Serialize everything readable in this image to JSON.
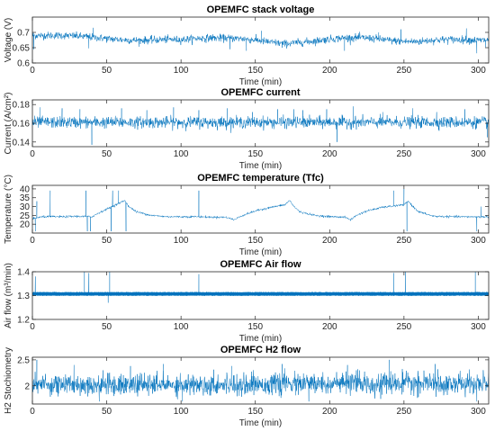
{
  "chart_data": [
    {
      "type": "line",
      "title": "OPEMFC stack voltage",
      "xlabel": "Time (min)",
      "ylabel": "Voltage (V)",
      "xlim": [
        0,
        307
      ],
      "ylim": [
        0.6,
        0.75
      ],
      "xticks": [
        0,
        50,
        100,
        150,
        200,
        250,
        300
      ],
      "yticks": [
        0.6,
        0.65,
        0.7
      ],
      "ytick_labels": [
        "0.6",
        "0.65",
        "0.7"
      ],
      "grid": false,
      "series": [
        {
          "color": "#0072BD",
          "noise": 0.012,
          "x": [
            0,
            10,
            20,
            30,
            38,
            40,
            50,
            60,
            70,
            80,
            90,
            100,
            110,
            120,
            130,
            140,
            150,
            160,
            170,
            180,
            190,
            200,
            210,
            220,
            230,
            240,
            250,
            260,
            270,
            280,
            290,
            300,
            307
          ],
          "y": [
            0.69,
            0.69,
            0.69,
            0.688,
            0.685,
            0.684,
            0.68,
            0.676,
            0.674,
            0.675,
            0.677,
            0.676,
            0.68,
            0.682,
            0.681,
            0.68,
            0.675,
            0.668,
            0.663,
            0.667,
            0.672,
            0.678,
            0.682,
            0.683,
            0.68,
            0.674,
            0.67,
            0.67,
            0.675,
            0.677,
            0.676,
            0.674,
            0.675
          ],
          "spikes": [
            [
              1,
              0.645
            ],
            [
              38,
              0.648
            ],
            [
              41,
              0.715
            ],
            [
              133,
              0.645
            ],
            [
              144,
              0.64
            ],
            [
              154,
              0.705
            ],
            [
              168,
              0.65
            ],
            [
              210,
              0.64
            ],
            [
              233,
              0.7
            ],
            [
              248,
              0.71
            ],
            [
              292,
              0.713
            ],
            [
              299,
              0.632
            ],
            [
              305,
              0.652
            ]
          ]
        }
      ]
    },
    {
      "type": "line",
      "title": "OPEMFC current",
      "xlabel": "Time (min)",
      "ylabel": "Current (A/cm²)",
      "xlim": [
        0,
        307
      ],
      "ylim": [
        0.135,
        0.185
      ],
      "xticks": [
        0,
        50,
        100,
        150,
        200,
        250,
        300
      ],
      "yticks": [
        0.14,
        0.16,
        0.18
      ],
      "ytick_labels": [
        "0.14",
        "0.16",
        "0.18"
      ],
      "grid": false,
      "series": [
        {
          "color": "#0072BD",
          "noise": 0.006,
          "x": [
            0,
            50,
            100,
            150,
            200,
            250,
            307
          ],
          "y": [
            0.161,
            0.161,
            0.161,
            0.161,
            0.161,
            0.161,
            0.161
          ],
          "spikes": [
            [
              5,
              0.177
            ],
            [
              20,
              0.176
            ],
            [
              32,
              0.175
            ],
            [
              40,
              0.137
            ],
            [
              60,
              0.176
            ],
            [
              77,
              0.174
            ],
            [
              95,
              0.177
            ],
            [
              112,
              0.174
            ],
            [
              131,
              0.176
            ],
            [
              148,
              0.172
            ],
            [
              165,
              0.175
            ],
            [
              176,
              0.175
            ],
            [
              182,
              0.174
            ],
            [
              198,
              0.175
            ],
            [
              205,
              0.14
            ],
            [
              216,
              0.178
            ],
            [
              236,
              0.172
            ],
            [
              256,
              0.176
            ],
            [
              272,
              0.172
            ],
            [
              291,
              0.175
            ],
            [
              306,
              0.145
            ]
          ]
        }
      ]
    },
    {
      "type": "line",
      "title": "OPEMFC temperature (Tfc)",
      "xlabel": "Time (min)",
      "ylabel": "Temperature (°C)",
      "xlim": [
        0,
        307
      ],
      "ylim": [
        15,
        42
      ],
      "xticks": [
        0,
        50,
        100,
        150,
        200,
        250,
        300
      ],
      "yticks": [
        20,
        25,
        30,
        35,
        40
      ],
      "ytick_labels": [
        "20",
        "25",
        "30",
        "35",
        "40"
      ],
      "grid": false,
      "series": [
        {
          "color": "#0072BD",
          "noise": 0.6,
          "x": [
            0,
            5,
            10,
            20,
            30,
            40,
            45,
            50,
            55,
            60,
            62,
            65,
            70,
            80,
            90,
            100,
            110,
            120,
            130,
            136,
            140,
            150,
            160,
            170,
            173,
            176,
            180,
            190,
            200,
            210,
            214,
            218,
            225,
            235,
            245,
            250,
            253,
            256,
            260,
            270,
            280,
            290,
            300,
            307
          ],
          "y": [
            23,
            24,
            24.3,
            24.2,
            24.5,
            24.2,
            26.5,
            28.5,
            30.5,
            32.5,
            33.5,
            30,
            27,
            25,
            24.3,
            24.2,
            24.3,
            24,
            24,
            22.5,
            24.5,
            27.5,
            29.5,
            31,
            33.5,
            30,
            27,
            25,
            24.3,
            24,
            22.5,
            25,
            27.5,
            29.5,
            30.5,
            31,
            33,
            30,
            27,
            24.5,
            24.3,
            24.2,
            24.2,
            24.2
          ],
          "spikes": [
            [
              2,
              16
            ],
            [
              3,
              33
            ],
            [
              12,
              39
            ],
            [
              36,
              39
            ],
            [
              37,
              16
            ],
            [
              39,
              16
            ],
            [
              53,
              16
            ],
            [
              54,
              39
            ],
            [
              58,
              39
            ],
            [
              63,
              16
            ],
            [
              112,
              39
            ],
            [
              243,
              39
            ],
            [
              250,
              40
            ],
            [
              252,
              16
            ],
            [
              299,
              16
            ],
            [
              302,
              30
            ]
          ]
        }
      ]
    },
    {
      "type": "line",
      "title": "OPEMFC Air flow",
      "xlabel": "Time (min)",
      "ylabel": "Air flow (m³/min)",
      "xlim": [
        0,
        307
      ],
      "ylim": [
        1.2,
        1.4
      ],
      "xticks": [
        0,
        50,
        100,
        150,
        200,
        250,
        300
      ],
      "yticks": [
        1.2,
        1.3,
        1.4
      ],
      "ytick_labels": [
        "1.2",
        "1.3",
        "1.4"
      ],
      "grid": false,
      "series": [
        {
          "color": "#0072BD",
          "noise": 0.0,
          "band": 0.0085,
          "x": [
            0,
            307
          ],
          "y": [
            1.307,
            1.307
          ],
          "spikes": [
            [
              2,
              1.38
            ],
            [
              35,
              1.4
            ],
            [
              38,
              1.395
            ],
            [
              51,
              1.27
            ],
            [
              52,
              1.4
            ],
            [
              112,
              1.39
            ],
            [
              243,
              1.395
            ],
            [
              251,
              1.4
            ],
            [
              298,
              1.4
            ]
          ]
        }
      ]
    },
    {
      "type": "line",
      "title": "OPEMFC H2 flow",
      "xlabel": "Time (min)",
      "ylabel": "H2 Stochiometry",
      "xlim": [
        0,
        307
      ],
      "ylim": [
        1.65,
        2.55
      ],
      "xticks": [
        0,
        50,
        100,
        150,
        200,
        250,
        300
      ],
      "yticks": [
        2,
        2.5
      ],
      "ytick_labels": [
        "2",
        "2.5"
      ],
      "grid": false,
      "series": [
        {
          "color": "#0072BD",
          "noise": 0.2,
          "x": [
            0,
            50,
            100,
            150,
            200,
            250,
            307
          ],
          "y": [
            2.03,
            2.02,
            2.02,
            2.03,
            2.04,
            2.04,
            2.04
          ],
          "spikes": [
            [
              3,
              2.5
            ],
            [
              28,
              2.4
            ],
            [
              45,
              1.7
            ],
            [
              66,
              2.38
            ],
            [
              88,
              2.42
            ],
            [
              101,
              1.7
            ],
            [
              134,
              2.38
            ],
            [
              168,
              2.42
            ],
            [
              186,
              1.7
            ],
            [
              212,
              2.4
            ],
            [
              240,
              2.5
            ],
            [
              271,
              2.42
            ],
            [
              299,
              1.7
            ]
          ]
        }
      ]
    }
  ]
}
